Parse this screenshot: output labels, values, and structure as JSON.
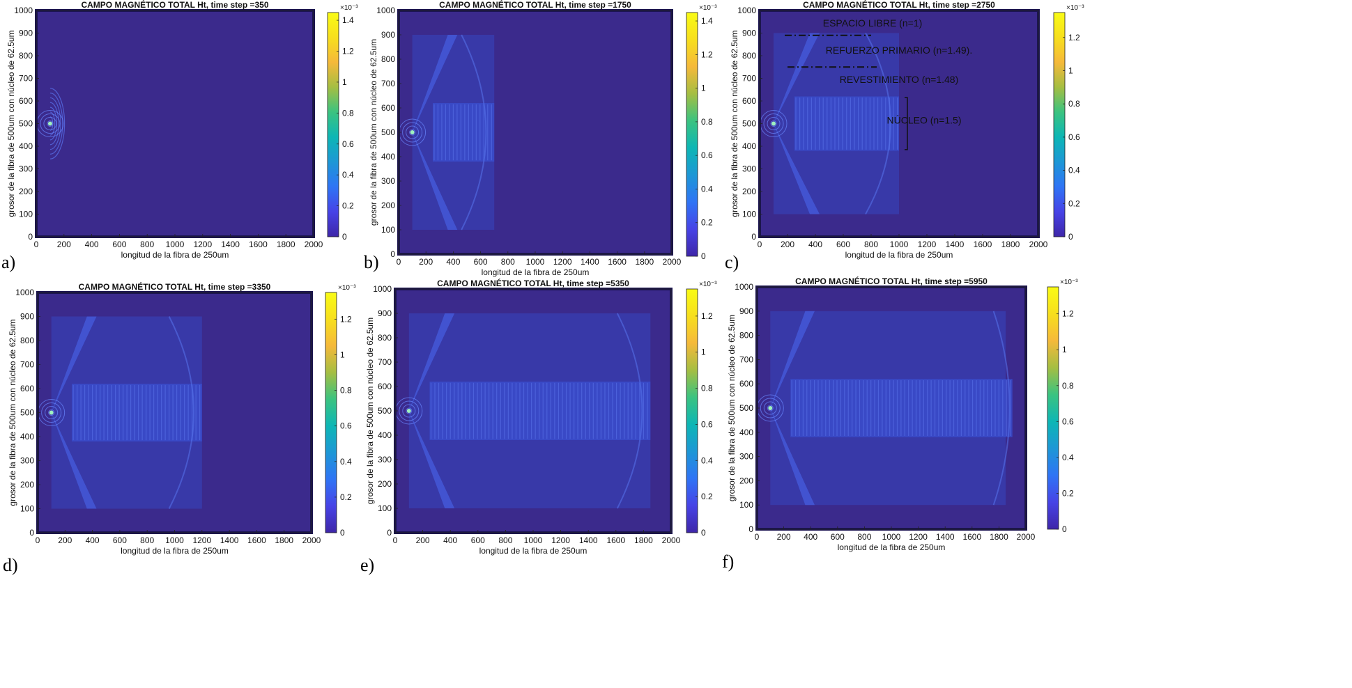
{
  "figure": {
    "colors": {
      "background": "#3b2a8c",
      "core": "#3a4fd0",
      "cladding": "#3645c0",
      "source": "#9ef0c0"
    },
    "colorbar_colors": [
      "#3e26a8",
      "#4743e6",
      "#2f74f5",
      "#1d97d6",
      "#0db6b5",
      "#3bc380",
      "#a5be42",
      "#f5b93a",
      "#f7df1d",
      "#f9fb15"
    ]
  },
  "chart_data": [
    {
      "type": "heatmap",
      "panel_label": "a)",
      "title": "CAMPO MAGNÉTICO TOTAL Ht, time step =350",
      "xlabel": "longitud de la fibra de 250um",
      "ylabel": "grosor de la fibra de 500um con núcleo de 62.5um",
      "xlim": [
        0,
        2000
      ],
      "ylim": [
        0,
        1000
      ],
      "xticks": [
        "0",
        "200",
        "400",
        "600",
        "800",
        "1000",
        "1200",
        "1400",
        "1600",
        "1800",
        "2000"
      ],
      "yticks": [
        "0",
        "100",
        "200",
        "300",
        "400",
        "500",
        "600",
        "700",
        "800",
        "900",
        "1000"
      ],
      "colorbar": {
        "ticks": [
          "0",
          "0.2",
          "0.4",
          "0.6",
          "0.8",
          "1",
          "1.2",
          "1.4"
        ],
        "range": [
          0,
          1.45
        ],
        "exponent": "×10⁻³"
      },
      "source": {
        "x": 100,
        "y": 500
      },
      "wavefront_x": 200,
      "annotations": []
    },
    {
      "type": "heatmap",
      "panel_label": "b)",
      "title": "CAMPO MAGNÉTICO TOTAL Ht, time step =1750",
      "xlabel": "longitud de la fibra de 250um",
      "ylabel": "grosor de la fibra de 500um con núcleo de 62.5um",
      "xlim": [
        0,
        2000
      ],
      "ylim": [
        0,
        1000
      ],
      "xticks": [
        "0",
        "200",
        "400",
        "600",
        "800",
        "1000",
        "1200",
        "1400",
        "1600",
        "1800",
        "2000"
      ],
      "yticks": [
        "0",
        "100",
        "200",
        "300",
        "400",
        "500",
        "600",
        "700",
        "800",
        "900",
        "1000"
      ],
      "colorbar": {
        "ticks": [
          "0",
          "0.2",
          "0.4",
          "0.6",
          "0.8",
          "1",
          "1.2",
          "1.4"
        ],
        "range": [
          0,
          1.45
        ],
        "exponent": "×10⁻³"
      },
      "source": {
        "x": 100,
        "y": 500
      },
      "wavefront_x": 700,
      "annotations": []
    },
    {
      "type": "heatmap",
      "panel_label": "c)",
      "title": "CAMPO MAGNÉTICO TOTAL Ht, time step =2750",
      "xlabel": "longitud de la fibra de 250um",
      "ylabel": "grosor de la fibra de 500um con núcleo de 62.5um",
      "xlim": [
        0,
        2000
      ],
      "ylim": [
        0,
        1000
      ],
      "xticks": [
        "0",
        "200",
        "400",
        "600",
        "800",
        "1000",
        "1200",
        "1400",
        "1600",
        "1800",
        "2000"
      ],
      "yticks": [
        "0",
        "100",
        "200",
        "300",
        "400",
        "500",
        "600",
        "700",
        "800",
        "900",
        "1000"
      ],
      "colorbar": {
        "ticks": [
          "0",
          "0.2",
          "0.4",
          "0.6",
          "0.8",
          "1",
          "1.2"
        ],
        "range": [
          0,
          1.35
        ],
        "exponent": "×10⁻³"
      },
      "source": {
        "x": 100,
        "y": 500
      },
      "wavefront_x": 1000,
      "annotations": [
        {
          "text": "ESPACIO LIBRE (n=1)",
          "x": 810,
          "y": 930
        },
        {
          "text": "REFUERZO PRIMARIO (n=1.49).",
          "x": 1000,
          "y": 810
        },
        {
          "text": "REVESTIMIENTO (n=1.48)",
          "x": 1000,
          "y": 680
        },
        {
          "text": "NÚCLEO (n=1.5)",
          "x": 1180,
          "y": 500
        }
      ]
    },
    {
      "type": "heatmap",
      "panel_label": "d)",
      "title": "CAMPO MAGNÉTICO TOTAL Ht, time step =3350",
      "xlabel": "longitud de la fibra de 250um",
      "ylabel": "grosor de la fibra de 500um con núcleo de 62.5um",
      "xlim": [
        0,
        2000
      ],
      "ylim": [
        0,
        1000
      ],
      "xticks": [
        "0",
        "200",
        "400",
        "600",
        "800",
        "1000",
        "1200",
        "1400",
        "1600",
        "1800",
        "2000"
      ],
      "yticks": [
        "0",
        "100",
        "200",
        "300",
        "400",
        "500",
        "600",
        "700",
        "800",
        "900",
        "1000"
      ],
      "colorbar": {
        "ticks": [
          "0",
          "0.2",
          "0.4",
          "0.6",
          "0.8",
          "1",
          "1.2"
        ],
        "range": [
          0,
          1.35
        ],
        "exponent": "×10⁻³"
      },
      "source": {
        "x": 100,
        "y": 500
      },
      "wavefront_x": 1200,
      "annotations": []
    },
    {
      "type": "heatmap",
      "panel_label": "e)",
      "title": "CAMPO MAGNÉTICO TOTAL Ht, time step =5350",
      "xlabel": "longitud de la fibra de 250um",
      "ylabel": "grosor de la fibra de 500um con núcleo de 62.5um",
      "xlim": [
        0,
        2000
      ],
      "ylim": [
        0,
        1000
      ],
      "xticks": [
        "0",
        "200",
        "400",
        "600",
        "800",
        "1000",
        "1200",
        "1400",
        "1600",
        "1800",
        "2000"
      ],
      "yticks": [
        "0",
        "100",
        "200",
        "300",
        "400",
        "500",
        "600",
        "700",
        "800",
        "900",
        "1000"
      ],
      "colorbar": {
        "ticks": [
          "0",
          "0.2",
          "0.4",
          "0.6",
          "0.8",
          "1",
          "1.2"
        ],
        "range": [
          0,
          1.35
        ],
        "exponent": "×10⁻³"
      },
      "source": {
        "x": 100,
        "y": 500
      },
      "wavefront_x": 1850,
      "annotations": []
    },
    {
      "type": "heatmap",
      "panel_label": "f)",
      "title": "CAMPO MAGNÉTICO TOTAL Ht, time step =5950",
      "xlabel": "longitud de la fibra de 250um",
      "ylabel": "grosor de la fibra de 500um con núcleo de 62.5um",
      "xlim": [
        0,
        2000
      ],
      "ylim": [
        0,
        1000
      ],
      "xticks": [
        "0",
        "200",
        "400",
        "600",
        "800",
        "1000",
        "1200",
        "1400",
        "1600",
        "1800",
        "2000"
      ],
      "yticks": [
        "0",
        "100",
        "200",
        "300",
        "400",
        "500",
        "600",
        "700",
        "800",
        "900",
        "1000"
      ],
      "colorbar": {
        "ticks": [
          "0",
          "0.2",
          "0.4",
          "0.6",
          "0.8",
          "1",
          "1.2"
        ],
        "range": [
          0,
          1.35
        ],
        "exponent": "×10⁻³"
      },
      "source": {
        "x": 100,
        "y": 500
      },
      "wavefront_x": 2000,
      "annotations": []
    }
  ]
}
